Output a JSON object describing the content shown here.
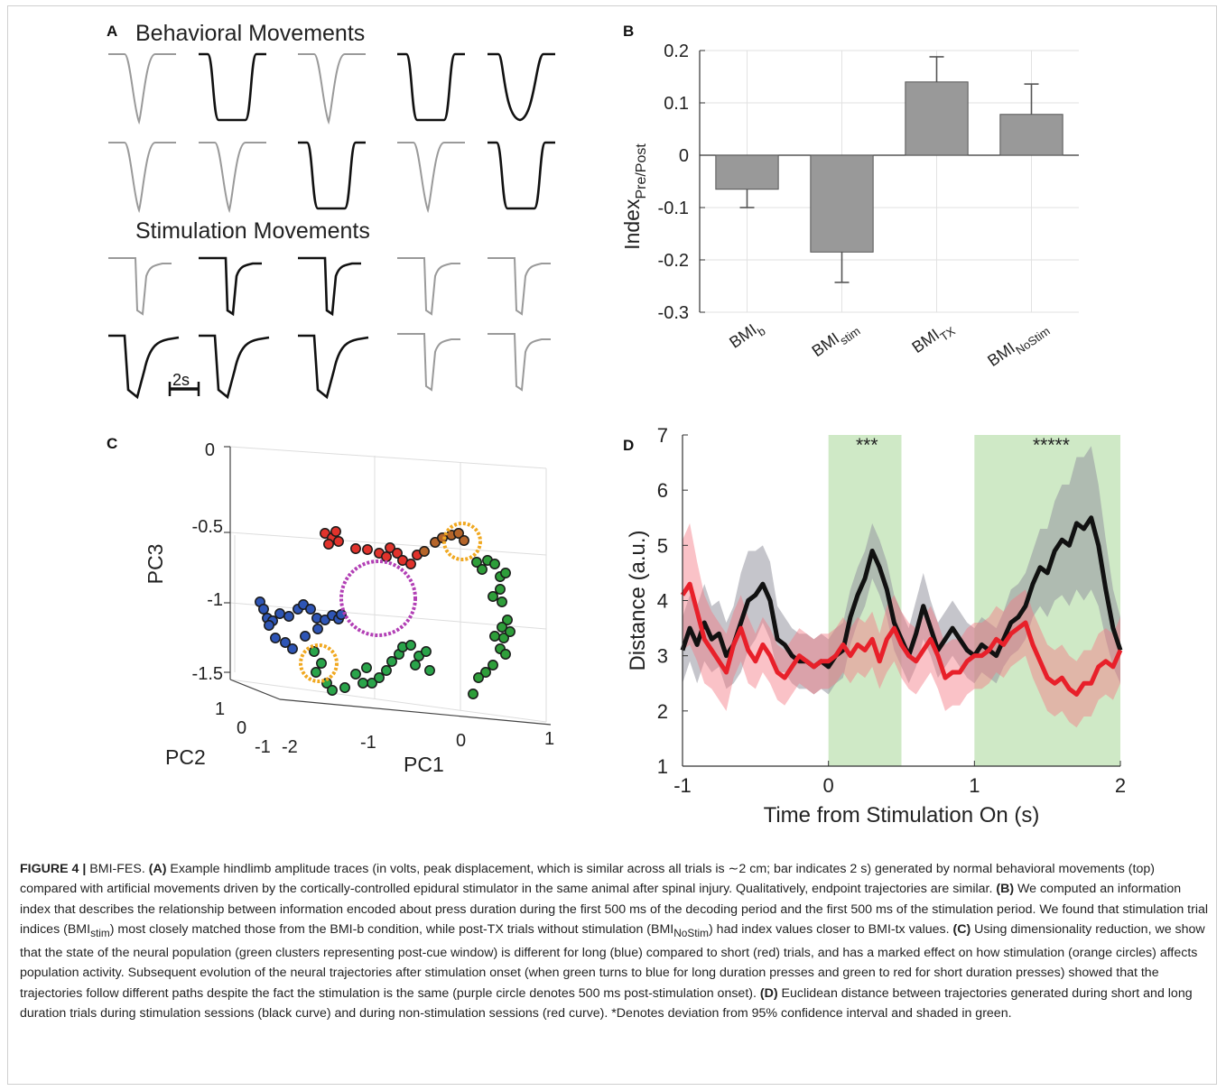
{
  "panelA": {
    "letter": "A",
    "title_behavioral": "Behavioral Movements",
    "title_stimulation": "Stimulation Movements",
    "scalebar_label": "2s"
  },
  "panelB": {
    "letter": "B",
    "ylabel": "Index",
    "ylabel_sub": "Pre/Post"
  },
  "panelC": {
    "letter": "C",
    "xlabel": "PC1",
    "ylabel": "PC2",
    "zlabel": "PC3",
    "pc3_ticks": [
      "0",
      "-0.5",
      "-1",
      "-1.5"
    ],
    "pc2_ticks": [
      "1",
      "0",
      "-1"
    ],
    "pc1_ticks": [
      "-2",
      "-1",
      "0",
      "1"
    ]
  },
  "panelD": {
    "letter": "D",
    "stars_left": "***",
    "stars_right": "*****"
  },
  "chart_data": [
    {
      "type": "bar",
      "title": "",
      "categories": [
        "BMI_b",
        "BMI_stim",
        "BMI_TX",
        "BMI_NoStim"
      ],
      "category_labels": [
        {
          "main": "BMI",
          "sub": "b"
        },
        {
          "main": "BMI",
          "sub": "stim"
        },
        {
          "main": "BMI",
          "sub": "TX"
        },
        {
          "main": "BMI",
          "sub": "NoStim"
        }
      ],
      "values": [
        -0.065,
        -0.185,
        0.14,
        0.078
      ],
      "errors": [
        0.035,
        0.058,
        0.048,
        0.058
      ],
      "ylim": [
        -0.3,
        0.2
      ],
      "yticks": [
        0.2,
        0.1,
        0,
        -0.1,
        -0.2,
        -0.3
      ],
      "ytick_labels": [
        "0.2",
        "0.1",
        "0",
        "-0.1",
        "-0.2",
        "-0.3"
      ],
      "grid": true,
      "bar_color": "#999999"
    },
    {
      "type": "line",
      "title": "",
      "xlabel": "Time from Stimulation On (s)",
      "ylabel": "Distance (a.u.)",
      "xlim": [
        -1,
        2
      ],
      "ylim": [
        1,
        7
      ],
      "xticks": [
        -1,
        0,
        1,
        2
      ],
      "xtick_labels": [
        "-1",
        "0",
        "1",
        "2"
      ],
      "yticks": [
        1,
        2,
        3,
        4,
        5,
        6,
        7
      ],
      "ytick_labels": [
        "1",
        "2",
        "3",
        "4",
        "5",
        "6",
        "7"
      ],
      "shaded_regions": [
        {
          "x0": 0,
          "x1": 0.5,
          "color": "#cfe9c6"
        },
        {
          "x0": 1,
          "x1": 2,
          "color": "#cfe9c6"
        }
      ],
      "series": [
        {
          "color": "#111111",
          "x": [
            -1,
            -0.95,
            -0.9,
            -0.85,
            -0.8,
            -0.75,
            -0.7,
            -0.65,
            -0.6,
            -0.55,
            -0.5,
            -0.45,
            -0.4,
            -0.35,
            -0.3,
            -0.25,
            -0.2,
            -0.15,
            -0.1,
            -0.05,
            0,
            0.05,
            0.1,
            0.15,
            0.2,
            0.25,
            0.3,
            0.35,
            0.4,
            0.45,
            0.5,
            0.55,
            0.6,
            0.65,
            0.7,
            0.75,
            0.8,
            0.85,
            0.9,
            0.95,
            1.0,
            1.05,
            1.1,
            1.15,
            1.2,
            1.25,
            1.3,
            1.35,
            1.4,
            1.45,
            1.5,
            1.55,
            1.6,
            1.65,
            1.7,
            1.75,
            1.8,
            1.85,
            1.9,
            1.95,
            2.0
          ],
          "y": [
            3.1,
            3.5,
            3.2,
            3.6,
            3.3,
            3.4,
            3.0,
            3.2,
            3.6,
            4.0,
            4.1,
            4.3,
            4.0,
            3.3,
            3.2,
            3.0,
            2.9,
            2.9,
            2.8,
            2.9,
            2.8,
            3.0,
            3.1,
            3.7,
            4.1,
            4.4,
            4.9,
            4.6,
            4.2,
            3.6,
            3.3,
            3.0,
            3.4,
            3.9,
            3.5,
            3.1,
            3.3,
            3.5,
            3.3,
            3.1,
            3.0,
            3.2,
            3.1,
            3.0,
            3.3,
            3.6,
            3.7,
            3.9,
            4.3,
            4.6,
            4.5,
            4.9,
            5.1,
            5.0,
            5.4,
            5.3,
            5.5,
            5.0,
            4.2,
            3.5,
            3.1
          ],
          "band": [
            0.6,
            0.6,
            0.7,
            0.7,
            0.6,
            0.6,
            0.6,
            0.7,
            0.9,
            0.9,
            0.8,
            0.7,
            0.7,
            0.6,
            0.5,
            0.5,
            0.5,
            0.5,
            0.5,
            0.5,
            0.5,
            0.5,
            0.5,
            0.5,
            0.5,
            0.5,
            0.5,
            0.5,
            0.5,
            0.5,
            0.5,
            0.5,
            0.6,
            0.6,
            0.5,
            0.5,
            0.5,
            0.5,
            0.5,
            0.5,
            0.5,
            0.5,
            0.5,
            0.5,
            0.5,
            0.6,
            0.6,
            0.6,
            0.6,
            0.7,
            0.8,
            0.9,
            1.0,
            1.1,
            1.2,
            1.3,
            1.3,
            1.1,
            0.9,
            0.7,
            0.6
          ]
        },
        {
          "color": "#e8202a",
          "x": [
            -1,
            -0.95,
            -0.9,
            -0.85,
            -0.8,
            -0.75,
            -0.7,
            -0.65,
            -0.6,
            -0.55,
            -0.5,
            -0.45,
            -0.4,
            -0.35,
            -0.3,
            -0.25,
            -0.2,
            -0.15,
            -0.1,
            -0.05,
            0,
            0.05,
            0.1,
            0.15,
            0.2,
            0.25,
            0.3,
            0.35,
            0.4,
            0.45,
            0.5,
            0.55,
            0.6,
            0.65,
            0.7,
            0.75,
            0.8,
            0.85,
            0.9,
            0.95,
            1.0,
            1.05,
            1.1,
            1.15,
            1.2,
            1.25,
            1.3,
            1.35,
            1.4,
            1.45,
            1.5,
            1.55,
            1.6,
            1.65,
            1.7,
            1.75,
            1.8,
            1.85,
            1.9,
            1.95,
            2.0
          ],
          "y": [
            4.1,
            4.3,
            3.8,
            3.3,
            3.1,
            2.9,
            2.7,
            3.2,
            3.5,
            3.1,
            2.9,
            3.2,
            3.0,
            2.7,
            2.6,
            2.8,
            3.0,
            2.9,
            2.8,
            2.9,
            2.9,
            3.0,
            3.2,
            3.0,
            3.2,
            3.1,
            3.3,
            2.9,
            3.3,
            3.5,
            3.2,
            3.0,
            2.9,
            3.1,
            3.3,
            3.0,
            2.6,
            2.7,
            2.7,
            2.9,
            3.0,
            3.0,
            3.1,
            3.3,
            3.2,
            3.4,
            3.5,
            3.6,
            3.2,
            2.9,
            2.6,
            2.5,
            2.6,
            2.4,
            2.3,
            2.5,
            2.5,
            2.8,
            2.9,
            2.8,
            3.1
          ],
          "band": [
            1.0,
            1.1,
            0.9,
            0.8,
            0.7,
            0.7,
            0.7,
            0.6,
            0.6,
            0.6,
            0.5,
            0.5,
            0.5,
            0.5,
            0.5,
            0.5,
            0.5,
            0.5,
            0.5,
            0.5,
            0.5,
            0.5,
            0.5,
            0.5,
            0.5,
            0.5,
            0.5,
            0.5,
            0.6,
            0.6,
            0.6,
            0.6,
            0.6,
            0.6,
            0.6,
            0.6,
            0.6,
            0.6,
            0.6,
            0.6,
            0.6,
            0.6,
            0.6,
            0.6,
            0.6,
            0.6,
            0.6,
            0.6,
            0.6,
            0.6,
            0.6,
            0.6,
            0.6,
            0.6,
            0.6,
            0.6,
            0.6,
            0.6,
            0.6,
            0.6,
            0.6
          ]
        }
      ]
    }
  ],
  "caption": {
    "label": "FIGURE 4 |",
    "title": " BMI-FES. ",
    "a_tag": "(A)",
    "a_text": " Example hindlimb amplitude traces (in volts, peak displacement, which is similar across all trials is ∼2 cm; bar indicates 2 s) generated by normal behavioral movements (top) compared with artificial movements driven by the cortically-controlled epidural stimulator in the same animal after spinal injury. Qualitatively, endpoint trajectories are similar. ",
    "b_tag": "(B)",
    "b_text1": " We computed an information index that describes the relationship between information encoded about press duration during the first 500 ms of the decoding period and the first 500 ms of the stimulation period. We found that stimulation trial indices (BMI",
    "b_sub1": "stim",
    "b_text2": ") most closely matched those from the BMI-b condition, while post-TX trials without stimulation (BMI",
    "b_sub2": "NoStim",
    "b_text3": ") had index values closer to BMI-tx values. ",
    "c_tag": "(C)",
    "c_text": " Using dimensionality reduction, we show that the state of the neural population (green clusters representing post-cue window) is different for long (blue) compared to short (red) trials, and has a marked effect on how stimulation (orange circles) affects population activity. Subsequent evolution of the neural trajectories after stimulation onset (when green turns to blue for long duration presses and green to red for short duration presses) showed that the trajectories follow different paths despite the fact the stimulation is the same (purple circle denotes 500 ms post-stimulation onset). ",
    "d_tag": "(D)",
    "d_text": " Euclidean distance between trajectories generated during short and long duration trials during stimulation sessions (black curve) and during non-stimulation sessions (red curve). *Denotes deviation from 95% confidence interval and shaded in green."
  }
}
